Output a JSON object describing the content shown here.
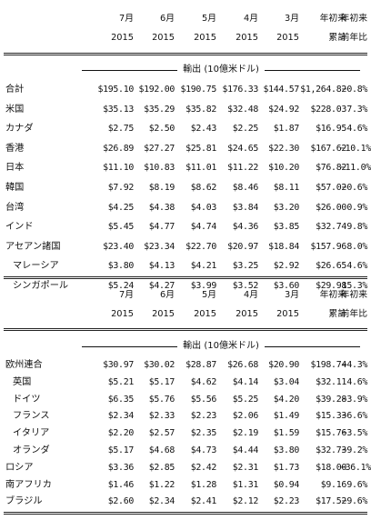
{
  "section1": {
    "header": {
      "months": [
        "7月",
        "6月",
        "5月",
        "4月",
        "3月"
      ],
      "years": [
        "2015",
        "2015",
        "2015",
        "2015",
        "2015"
      ],
      "ytd_label_1": "年初来",
      "ytd_label_2": "累計",
      "yoy_label_1": "年初来",
      "yoy_label_2": "前年比"
    },
    "units": "輸出 (10億米ドル)",
    "rows": [
      {
        "label": "合計",
        "v": [
          "$195.10",
          "$192.00",
          "$190.75",
          "$176.33",
          "$144.57",
          "$1,264.82",
          "−0.8%"
        ]
      },
      {
        "label": "米国",
        "v": [
          "$35.13",
          "$35.29",
          "$35.82",
          "$32.48",
          "$24.92",
          "$228.03",
          "7.3%"
        ]
      },
      {
        "label": "カナダ",
        "v": [
          "$2.75",
          "$2.50",
          "$2.43",
          "$2.25",
          "$1.87",
          "$16.95",
          "4.6%"
        ]
      },
      {
        "label": "香港",
        "v": [
          "$26.89",
          "$27.27",
          "$25.81",
          "$24.65",
          "$22.30",
          "$167.62",
          "−10.1%"
        ]
      },
      {
        "label": "日本",
        "v": [
          "$11.10",
          "$10.83",
          "$11.01",
          "$11.22",
          "$10.20",
          "$76.82",
          "−11.0%"
        ]
      },
      {
        "label": "韓国",
        "v": [
          "$7.92",
          "$8.19",
          "$8.62",
          "$8.46",
          "$8.11",
          "$57.02",
          "−0.6%"
        ]
      },
      {
        "label": "台湾",
        "v": [
          "$4.25",
          "$4.38",
          "$4.03",
          "$3.84",
          "$3.20",
          "$26.00",
          "0.9%"
        ]
      },
      {
        "label": "インド",
        "v": [
          "$5.45",
          "$4.77",
          "$4.74",
          "$4.36",
          "$3.85",
          "$32.74",
          "9.8%"
        ]
      },
      {
        "label": "アセアン諸国",
        "v": [
          "$23.40",
          "$23.34",
          "$22.70",
          "$20.97",
          "$18.84",
          "$157.96",
          "8.0%"
        ]
      },
      {
        "label": "マレーシア",
        "indent": true,
        "v": [
          "$3.80",
          "$4.13",
          "$4.21",
          "$3.25",
          "$2.92",
          "$26.65",
          "4.6%"
        ]
      },
      {
        "label": "シンガポール",
        "indent": true,
        "v": [
          "$5.24",
          "$4.27",
          "$3.99",
          "$3.52",
          "$3.60",
          "$29.98",
          "15.3%"
        ]
      }
    ]
  },
  "section2": {
    "header": {
      "months": [
        "7月",
        "6月",
        "5月",
        "4月",
        "3月"
      ],
      "years": [
        "2015",
        "2015",
        "2015",
        "2015",
        "2015"
      ],
      "ytd_label_1": "年初来",
      "ytd_label_2": "累計",
      "yoy_label_1": "年初来",
      "yoy_label_2": "前年比"
    },
    "units": "輸出 (10億米ドル)",
    "rows": [
      {
        "label": "欧州連合",
        "v": [
          "$30.97",
          "$30.02",
          "$28.87",
          "$26.68",
          "$20.90",
          "$198.74",
          "−4.3%"
        ]
      },
      {
        "label": "英国",
        "indent": true,
        "v": [
          "$5.21",
          "$5.17",
          "$4.62",
          "$4.14",
          "$3.04",
          "$32.11",
          "4.6%"
        ]
      },
      {
        "label": "ドイツ",
        "indent": true,
        "v": [
          "$6.35",
          "$5.76",
          "$5.56",
          "$5.25",
          "$4.20",
          "$39.28",
          "−3.9%"
        ]
      },
      {
        "label": "フランス",
        "indent": true,
        "v": [
          "$2.34",
          "$2.33",
          "$2.23",
          "$2.06",
          "$1.49",
          "$15.33",
          "−6.6%"
        ]
      },
      {
        "label": "イタリア",
        "indent": true,
        "v": [
          "$2.20",
          "$2.57",
          "$2.35",
          "$2.19",
          "$1.59",
          "$15.76",
          "−3.5%"
        ]
      },
      {
        "label": "オランダ",
        "indent": true,
        "v": [
          "$5.17",
          "$4.68",
          "$4.73",
          "$4.44",
          "$3.80",
          "$32.73",
          "−9.2%"
        ]
      },
      {
        "label": "ロシア",
        "v": [
          "$3.36",
          "$2.85",
          "$2.42",
          "$2.31",
          "$1.73",
          "$18.00",
          "−36.1%"
        ]
      },
      {
        "label": "南アフリカ",
        "v": [
          "$1.46",
          "$1.22",
          "$1.28",
          "$1.31",
          "$0.94",
          "$9.16",
          "9.6%"
        ]
      },
      {
        "label": "ブラジル",
        "v": [
          "$2.60",
          "$2.34",
          "$2.41",
          "$2.12",
          "$2.23",
          "$17.52",
          "−9.6%"
        ]
      }
    ]
  }
}
